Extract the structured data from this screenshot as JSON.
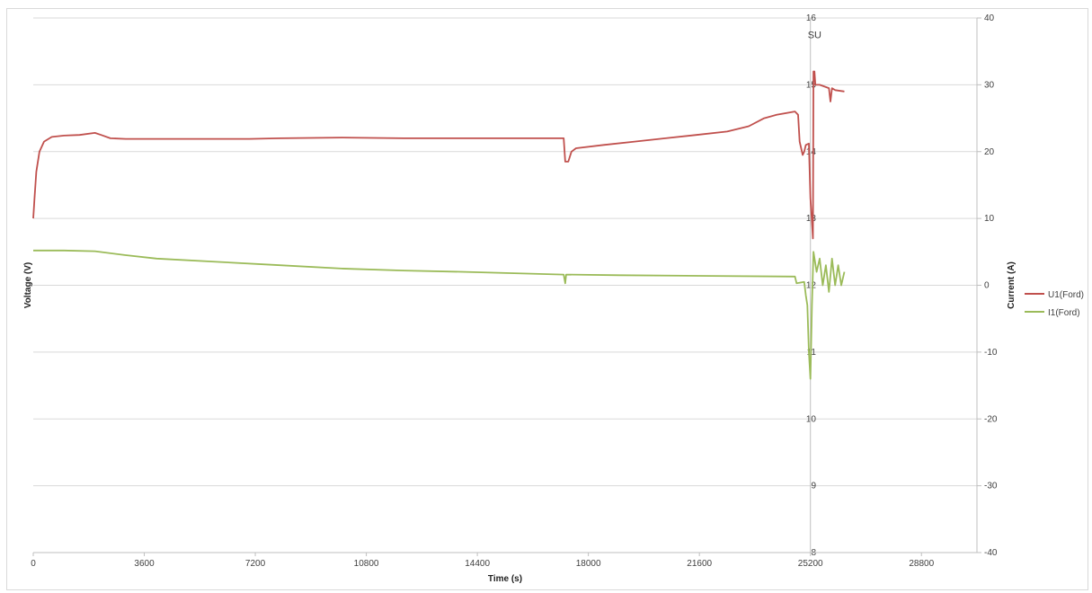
{
  "chart_data": {
    "type": "line",
    "title": "",
    "xlabel": "Time (s)",
    "ylabel_left": "Voltage (V)",
    "ylabel_right": "Current (A)",
    "xlim": [
      0,
      30600
    ],
    "ylim_left": [
      8,
      16
    ],
    "ylim_right": [
      -40,
      40
    ],
    "x_ticks": [
      "0",
      "3600",
      "7200",
      "10800",
      "14400",
      "18000",
      "21600",
      "25200",
      "28800"
    ],
    "y_left_ticks": [
      "8",
      "9",
      "10",
      "11",
      "12",
      "13",
      "14",
      "15",
      "16"
    ],
    "y_right_ticks": [
      "-40",
      "-30",
      "-20",
      "-10",
      "0",
      "10",
      "20",
      "30",
      "40"
    ],
    "grid": true,
    "legend_position": "right",
    "annotations": [
      {
        "text": "SU",
        "x": 25200,
        "y": 15.75
      }
    ],
    "vertical_line_x": 25200,
    "series": [
      {
        "name": "U1(Ford)",
        "axis": "left",
        "color": "#c0504d",
        "points": [
          [
            0,
            13.0
          ],
          [
            40,
            13.3
          ],
          [
            100,
            13.7
          ],
          [
            200,
            14.0
          ],
          [
            350,
            14.15
          ],
          [
            600,
            14.22
          ],
          [
            1000,
            14.24
          ],
          [
            1500,
            14.25
          ],
          [
            2000,
            14.28
          ],
          [
            2200,
            14.25
          ],
          [
            2500,
            14.2
          ],
          [
            3000,
            14.19
          ],
          [
            5000,
            14.19
          ],
          [
            7000,
            14.19
          ],
          [
            8000,
            14.2
          ],
          [
            10000,
            14.21
          ],
          [
            12000,
            14.2
          ],
          [
            14000,
            14.2
          ],
          [
            17200,
            14.2
          ],
          [
            17250,
            13.85
          ],
          [
            17350,
            13.85
          ],
          [
            17450,
            14.0
          ],
          [
            17600,
            14.05
          ],
          [
            18500,
            14.1
          ],
          [
            19500,
            14.15
          ],
          [
            20500,
            14.2
          ],
          [
            21500,
            14.25
          ],
          [
            22500,
            14.3
          ],
          [
            23200,
            14.38
          ],
          [
            23700,
            14.5
          ],
          [
            24100,
            14.55
          ],
          [
            24700,
            14.6
          ],
          [
            24800,
            14.55
          ],
          [
            24850,
            14.15
          ],
          [
            24950,
            13.95
          ],
          [
            25000,
            14.0
          ],
          [
            25050,
            14.1
          ],
          [
            25150,
            14.12
          ],
          [
            25200,
            13.3
          ],
          [
            25230,
            13.1
          ],
          [
            25280,
            12.7
          ],
          [
            25300,
            15.2
          ],
          [
            25330,
            15.2
          ],
          [
            25360,
            15.0
          ],
          [
            25500,
            15.0
          ],
          [
            25800,
            14.95
          ],
          [
            25850,
            14.75
          ],
          [
            25900,
            14.95
          ],
          [
            26000,
            14.92
          ],
          [
            26300,
            14.9
          ]
        ]
      },
      {
        "name": "I1(Ford)",
        "axis": "right",
        "color": "#9bbb59",
        "points": [
          [
            0,
            5.2
          ],
          [
            1000,
            5.2
          ],
          [
            2000,
            5.1
          ],
          [
            3000,
            4.5
          ],
          [
            4000,
            4.0
          ],
          [
            6000,
            3.5
          ],
          [
            8000,
            3.0
          ],
          [
            10000,
            2.5
          ],
          [
            12000,
            2.2
          ],
          [
            14000,
            2.0
          ],
          [
            17200,
            1.6
          ],
          [
            17250,
            0.3
          ],
          [
            17280,
            1.6
          ],
          [
            19000,
            1.5
          ],
          [
            22000,
            1.4
          ],
          [
            24700,
            1.3
          ],
          [
            24750,
            0.3
          ],
          [
            25000,
            0.5
          ],
          [
            25050,
            -1.5
          ],
          [
            25100,
            -3
          ],
          [
            25150,
            -10
          ],
          [
            25200,
            -14
          ],
          [
            25250,
            -3
          ],
          [
            25300,
            5
          ],
          [
            25400,
            2
          ],
          [
            25500,
            4
          ],
          [
            25600,
            0
          ],
          [
            25700,
            3
          ],
          [
            25800,
            -1
          ],
          [
            25900,
            4
          ],
          [
            26000,
            0
          ],
          [
            26100,
            3
          ],
          [
            26200,
            0
          ],
          [
            26300,
            2
          ]
        ]
      }
    ]
  }
}
